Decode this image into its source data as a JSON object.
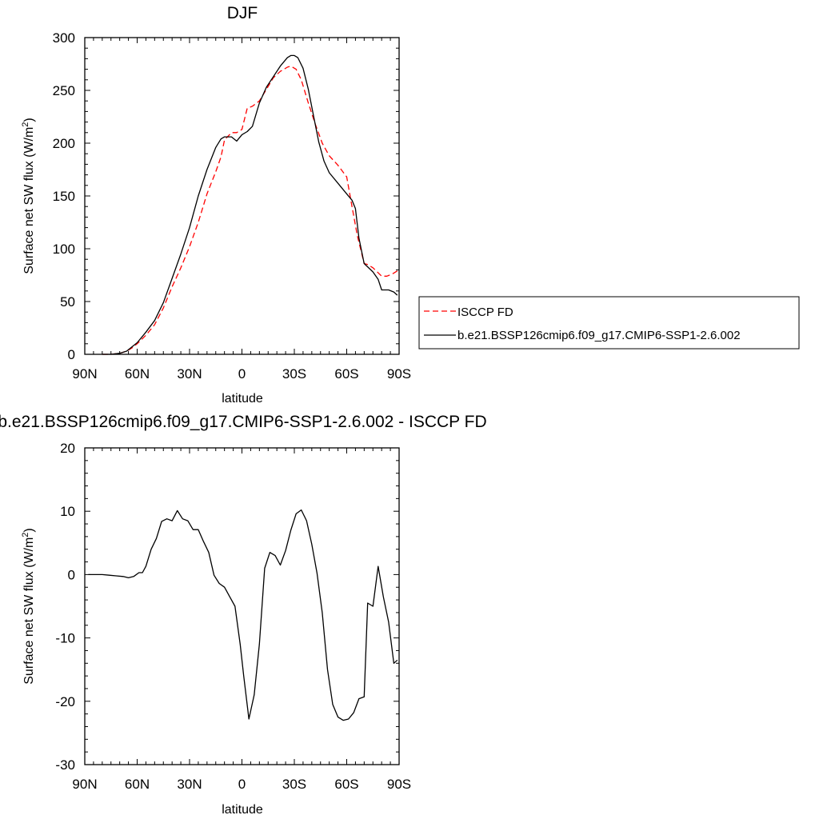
{
  "chart_data": [
    {
      "type": "line",
      "title": "DJF",
      "xlabel": "latitude",
      "ylabel": "Surface net SW flux (W/m",
      "ylabel_sup": "2",
      "ylabel_close": ")",
      "xlim": [
        -90,
        90
      ],
      "ylim": [
        0,
        300
      ],
      "x_ticks": [
        -90,
        -60,
        -30,
        0,
        30,
        60,
        90
      ],
      "x_tick_labels": [
        "90N",
        "60N",
        "30N",
        "0",
        "30S",
        "60S",
        "90S"
      ],
      "y_ticks": [
        0,
        50,
        100,
        150,
        200,
        250,
        300
      ],
      "y_tick_labels": [
        "0",
        "50",
        "100",
        "150",
        "200",
        "250",
        "300"
      ],
      "grid": false,
      "legend_position": "right",
      "series": [
        {
          "name": "ISCCP FD",
          "color": "#ff0000",
          "dash": "dashed",
          "x": [
            -80,
            -75,
            -70,
            -66,
            -63,
            -60,
            -55,
            -50,
            -45,
            -40,
            -35,
            -30,
            -25,
            -20,
            -15,
            -12,
            -10,
            -6,
            -3,
            0,
            3,
            6,
            10,
            14,
            18,
            22,
            26,
            28,
            31,
            34,
            38,
            42,
            46,
            50,
            55,
            60,
            63,
            66,
            70,
            72,
            75,
            80,
            83,
            86,
            89
          ],
          "y": [
            0,
            0,
            1,
            3,
            6,
            10,
            18,
            28,
            44,
            64,
            82,
            102,
            125,
            152,
            173,
            187,
            203,
            210,
            210,
            213,
            233,
            235,
            240,
            251,
            262,
            268,
            272,
            273,
            270,
            260,
            238,
            218,
            200,
            188,
            179,
            168,
            140,
            113,
            86,
            85,
            82,
            74,
            74,
            76,
            79
          ]
        },
        {
          "name": "b.e21.BSSP126cmip6.f09_g17.CMIP6-SSP1-2.6.002",
          "color": "#000000",
          "dash": "solid",
          "x": [
            -80,
            -75,
            -70,
            -66,
            -63,
            -60,
            -55,
            -50,
            -45,
            -40,
            -35,
            -30,
            -25,
            -20,
            -15,
            -12,
            -10,
            -6,
            -3,
            0,
            3,
            6,
            10,
            14,
            18,
            22,
            26,
            28,
            30,
            32,
            35,
            38,
            41,
            44,
            47,
            50,
            55,
            60,
            63,
            65,
            67,
            70,
            75,
            78,
            80,
            84,
            87,
            89
          ],
          "y": [
            0,
            0,
            1,
            3,
            7,
            11,
            21,
            32,
            49,
            72,
            95,
            120,
            150,
            175,
            196,
            204,
            206,
            206,
            202,
            208,
            211,
            216,
            238,
            253,
            263,
            273,
            281,
            283,
            283,
            281,
            271,
            251,
            226,
            201,
            183,
            172,
            162,
            152,
            146,
            138,
            110,
            86,
            78,
            71,
            61,
            61,
            59,
            56
          ]
        }
      ]
    },
    {
      "type": "line",
      "title": "b.e21.BSSP126cmip6.f09_g17.CMIP6-SSP1-2.6.002 - ISCCP FD",
      "xlabel": "latitude",
      "ylabel": "Surface net SW flux (W/m",
      "ylabel_sup": "2",
      "ylabel_close": ")",
      "xlim": [
        -90,
        90
      ],
      "ylim": [
        -30,
        20
      ],
      "x_ticks": [
        -90,
        -60,
        -30,
        0,
        30,
        60,
        90
      ],
      "x_tick_labels": [
        "90N",
        "60N",
        "30N",
        "0",
        "30S",
        "60S",
        "90S"
      ],
      "y_ticks": [
        -30,
        -20,
        -10,
        0,
        10,
        20
      ],
      "y_tick_labels": [
        "-30",
        "-20",
        "-10",
        "0",
        "10",
        "20"
      ],
      "grid": false,
      "series": [
        {
          "name": "",
          "color": "#000000",
          "dash": "solid",
          "x": [
            -88,
            -84,
            -80,
            -76,
            -72,
            -68,
            -65,
            -62,
            -59,
            -57,
            -55,
            -52,
            -49,
            -46,
            -43,
            -40,
            -37,
            -34,
            -31,
            -28,
            -25,
            -22,
            -19,
            -16,
            -13,
            -10,
            -7,
            -4,
            -1,
            1,
            4,
            7,
            10,
            13,
            16,
            19,
            22,
            25,
            28,
            31,
            34,
            37,
            40,
            43,
            46,
            49,
            52,
            55,
            58,
            61,
            64,
            67,
            70,
            72,
            75,
            78,
            81,
            84,
            87,
            89
          ],
          "y": [
            0,
            0,
            0,
            -0.1,
            -0.2,
            -0.3,
            -0.5,
            -0.3,
            0.3,
            0.3,
            1.3,
            4,
            5.7,
            8.4,
            8.8,
            8.5,
            10.1,
            8.8,
            8.5,
            7.1,
            7.1,
            5.2,
            3.5,
            -0.1,
            -1.4,
            -2,
            -3.5,
            -5,
            -11,
            -16,
            -22.8,
            -19,
            -11,
            1,
            3.5,
            3,
            1.5,
            3.8,
            7,
            9.6,
            10.2,
            8.5,
            4.8,
            0.2,
            -6,
            -15,
            -20.5,
            -22.5,
            -23,
            -22.8,
            -21.8,
            -19.6,
            -19.3,
            -4.5,
            -5,
            1.3,
            -3.5,
            -7.5,
            -14,
            -13.5
          ]
        }
      ]
    }
  ]
}
